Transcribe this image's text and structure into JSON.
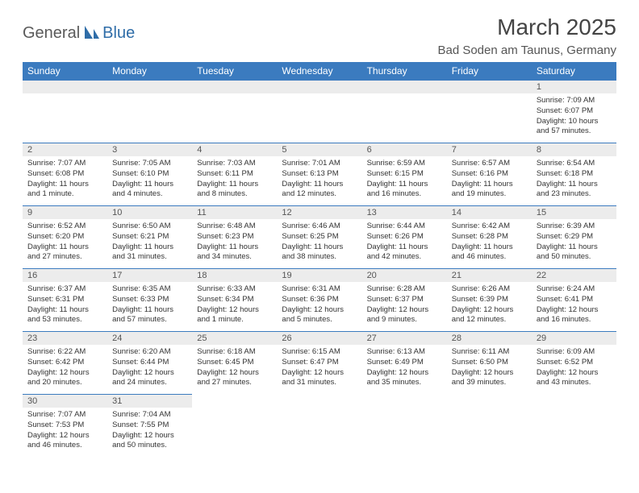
{
  "logo": {
    "text1": "General",
    "text2": "Blue"
  },
  "title": "March 2025",
  "location": "Bad Soden am Taunus, Germany",
  "colors": {
    "header_bg": "#3b7bbf",
    "header_text": "#ffffff",
    "daynum_bg": "#ececec",
    "border": "#3b7bbf",
    "logo_gray": "#5a5a5a",
    "logo_blue": "#2f6da8"
  },
  "weekdays": [
    "Sunday",
    "Monday",
    "Tuesday",
    "Wednesday",
    "Thursday",
    "Friday",
    "Saturday"
  ],
  "leading_blanks": 6,
  "days": [
    {
      "n": "1",
      "sunrise": "7:09 AM",
      "sunset": "6:07 PM",
      "daylight": "10 hours and 57 minutes."
    },
    {
      "n": "2",
      "sunrise": "7:07 AM",
      "sunset": "6:08 PM",
      "daylight": "11 hours and 1 minute."
    },
    {
      "n": "3",
      "sunrise": "7:05 AM",
      "sunset": "6:10 PM",
      "daylight": "11 hours and 4 minutes."
    },
    {
      "n": "4",
      "sunrise": "7:03 AM",
      "sunset": "6:11 PM",
      "daylight": "11 hours and 8 minutes."
    },
    {
      "n": "5",
      "sunrise": "7:01 AM",
      "sunset": "6:13 PM",
      "daylight": "11 hours and 12 minutes."
    },
    {
      "n": "6",
      "sunrise": "6:59 AM",
      "sunset": "6:15 PM",
      "daylight": "11 hours and 16 minutes."
    },
    {
      "n": "7",
      "sunrise": "6:57 AM",
      "sunset": "6:16 PM",
      "daylight": "11 hours and 19 minutes."
    },
    {
      "n": "8",
      "sunrise": "6:54 AM",
      "sunset": "6:18 PM",
      "daylight": "11 hours and 23 minutes."
    },
    {
      "n": "9",
      "sunrise": "6:52 AM",
      "sunset": "6:20 PM",
      "daylight": "11 hours and 27 minutes."
    },
    {
      "n": "10",
      "sunrise": "6:50 AM",
      "sunset": "6:21 PM",
      "daylight": "11 hours and 31 minutes."
    },
    {
      "n": "11",
      "sunrise": "6:48 AM",
      "sunset": "6:23 PM",
      "daylight": "11 hours and 34 minutes."
    },
    {
      "n": "12",
      "sunrise": "6:46 AM",
      "sunset": "6:25 PM",
      "daylight": "11 hours and 38 minutes."
    },
    {
      "n": "13",
      "sunrise": "6:44 AM",
      "sunset": "6:26 PM",
      "daylight": "11 hours and 42 minutes."
    },
    {
      "n": "14",
      "sunrise": "6:42 AM",
      "sunset": "6:28 PM",
      "daylight": "11 hours and 46 minutes."
    },
    {
      "n": "15",
      "sunrise": "6:39 AM",
      "sunset": "6:29 PM",
      "daylight": "11 hours and 50 minutes."
    },
    {
      "n": "16",
      "sunrise": "6:37 AM",
      "sunset": "6:31 PM",
      "daylight": "11 hours and 53 minutes."
    },
    {
      "n": "17",
      "sunrise": "6:35 AM",
      "sunset": "6:33 PM",
      "daylight": "11 hours and 57 minutes."
    },
    {
      "n": "18",
      "sunrise": "6:33 AM",
      "sunset": "6:34 PM",
      "daylight": "12 hours and 1 minute."
    },
    {
      "n": "19",
      "sunrise": "6:31 AM",
      "sunset": "6:36 PM",
      "daylight": "12 hours and 5 minutes."
    },
    {
      "n": "20",
      "sunrise": "6:28 AM",
      "sunset": "6:37 PM",
      "daylight": "12 hours and 9 minutes."
    },
    {
      "n": "21",
      "sunrise": "6:26 AM",
      "sunset": "6:39 PM",
      "daylight": "12 hours and 12 minutes."
    },
    {
      "n": "22",
      "sunrise": "6:24 AM",
      "sunset": "6:41 PM",
      "daylight": "12 hours and 16 minutes."
    },
    {
      "n": "23",
      "sunrise": "6:22 AM",
      "sunset": "6:42 PM",
      "daylight": "12 hours and 20 minutes."
    },
    {
      "n": "24",
      "sunrise": "6:20 AM",
      "sunset": "6:44 PM",
      "daylight": "12 hours and 24 minutes."
    },
    {
      "n": "25",
      "sunrise": "6:18 AM",
      "sunset": "6:45 PM",
      "daylight": "12 hours and 27 minutes."
    },
    {
      "n": "26",
      "sunrise": "6:15 AM",
      "sunset": "6:47 PM",
      "daylight": "12 hours and 31 minutes."
    },
    {
      "n": "27",
      "sunrise": "6:13 AM",
      "sunset": "6:49 PM",
      "daylight": "12 hours and 35 minutes."
    },
    {
      "n": "28",
      "sunrise": "6:11 AM",
      "sunset": "6:50 PM",
      "daylight": "12 hours and 39 minutes."
    },
    {
      "n": "29",
      "sunrise": "6:09 AM",
      "sunset": "6:52 PM",
      "daylight": "12 hours and 43 minutes."
    },
    {
      "n": "30",
      "sunrise": "7:07 AM",
      "sunset": "7:53 PM",
      "daylight": "12 hours and 46 minutes."
    },
    {
      "n": "31",
      "sunrise": "7:04 AM",
      "sunset": "7:55 PM",
      "daylight": "12 hours and 50 minutes."
    }
  ],
  "labels": {
    "sunrise": "Sunrise:",
    "sunset": "Sunset:",
    "daylight": "Daylight:"
  }
}
